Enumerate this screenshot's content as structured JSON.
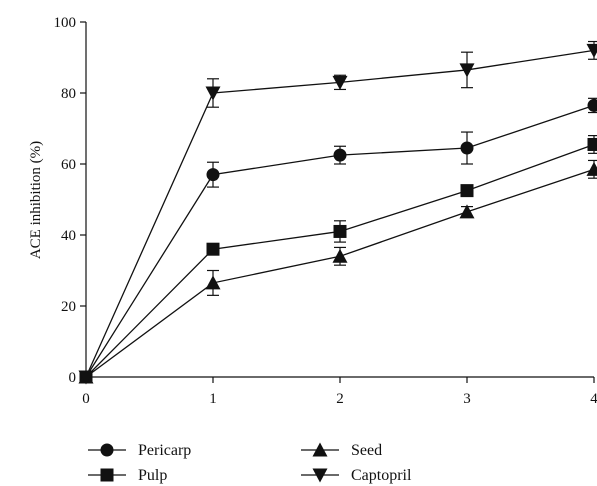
{
  "chart_data": {
    "type": "line",
    "title": "",
    "xlabel": "",
    "ylabel": "ACE inhibition (%)",
    "x": [
      0,
      1,
      2,
      3,
      4
    ],
    "x_ticks": [
      "0",
      "1",
      "2",
      "3",
      "4"
    ],
    "y_ticks": [
      "0",
      "20",
      "40",
      "60",
      "80",
      "100"
    ],
    "xlim": [
      0,
      4
    ],
    "ylim": [
      0,
      100
    ],
    "grid": false,
    "legend_position": "bottom-left",
    "series": [
      {
        "name": "Pericarp",
        "marker": "circle",
        "values": [
          0,
          57,
          62.5,
          64.5,
          76.5
        ],
        "errors": [
          0,
          3.5,
          2.5,
          4.5,
          2
        ]
      },
      {
        "name": "Pulp",
        "marker": "square",
        "values": [
          0,
          36,
          41,
          52.5,
          65.5
        ],
        "errors": [
          0,
          0,
          3,
          0,
          2.5
        ]
      },
      {
        "name": "Seed",
        "marker": "triangle-up",
        "values": [
          0,
          26.5,
          34,
          46.5,
          58.5
        ],
        "errors": [
          0,
          3.5,
          2.5,
          1.5,
          2.5
        ]
      },
      {
        "name": "Captopril",
        "marker": "triangle-down",
        "values": [
          0,
          80,
          83,
          86.5,
          92
        ],
        "errors": [
          0,
          4,
          2,
          5,
          2.5
        ]
      }
    ]
  }
}
